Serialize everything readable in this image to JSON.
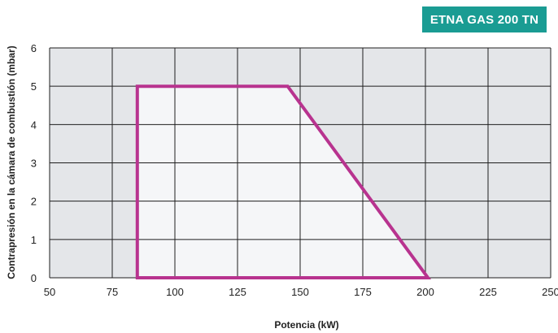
{
  "chart_data": {
    "type": "area",
    "title": "ETNA GAS 200 TN",
    "xlabel": "Potencia (kW)",
    "ylabel": "Contrapresión en la cámara de combustión (mbar)",
    "xlim": [
      50,
      250
    ],
    "ylim": [
      0,
      6
    ],
    "xticks": [
      50,
      75,
      100,
      125,
      150,
      175,
      200,
      225,
      250
    ],
    "yticks": [
      0,
      1,
      2,
      3,
      4,
      5,
      6
    ],
    "grid": true,
    "colors": {
      "plot_background": "#e4e6e9",
      "region_fill": "#f5f6f8",
      "region_stroke": "#b8338f",
      "grid": "#1e1e1e",
      "badge": "#1a9c93"
    },
    "series": [
      {
        "points": [
          {
            "x": 85,
            "y": 0
          },
          {
            "x": 85,
            "y": 5
          },
          {
            "x": 145,
            "y": 5
          },
          {
            "x": 201,
            "y": 0
          }
        ]
      }
    ]
  }
}
